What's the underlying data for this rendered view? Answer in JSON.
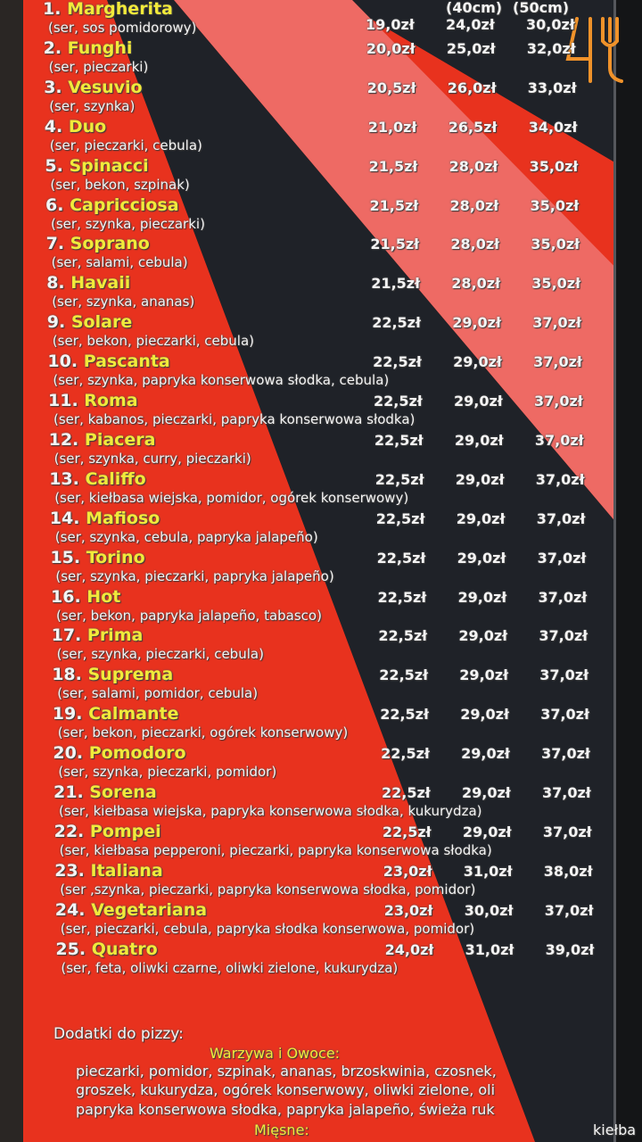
{
  "header": {
    "sizes": [
      "(40cm)",
      "(50cm)"
    ]
  },
  "logo": {
    "text": "45",
    "icon": "fork-icon",
    "color": "#f0922a"
  },
  "colors": {
    "red": "#e8321e",
    "pink": "#ee6a64",
    "dark": "#1f2228",
    "name": "#f2ea3a"
  },
  "pizzas": [
    {
      "num": "1.",
      "name": "Margherita",
      "desc": "(ser, sos pomidorowy)",
      "prices": [
        "19,0zł",
        "24,0zł",
        "30,0zł"
      ]
    },
    {
      "num": "2.",
      "name": "Funghi",
      "desc": "(ser, pieczarki)",
      "prices": [
        "20,0zł",
        "25,0zł",
        "32,0zł"
      ]
    },
    {
      "num": "3.",
      "name": "Vesuvio",
      "desc": "(ser, szynka)",
      "prices": [
        "20,5zł",
        "26,0zł",
        "33,0zł"
      ]
    },
    {
      "num": "4.",
      "name": "Duo",
      "desc": "(ser, pieczarki, cebula)",
      "prices": [
        "21,0zł",
        "26,5zł",
        "34,0zł"
      ]
    },
    {
      "num": "5.",
      "name": "Spinacci",
      "desc": "(ser, bekon, szpinak)",
      "prices": [
        "21,5zł",
        "28,0zł",
        "35,0zł"
      ]
    },
    {
      "num": "6.",
      "name": "Capricciosa",
      "desc": "(ser, szynka, pieczarki)",
      "prices": [
        "21,5zł",
        "28,0zł",
        "35,0zł"
      ]
    },
    {
      "num": "7.",
      "name": "Soprano",
      "desc": "(ser, salami, cebula)",
      "prices": [
        "21,5zł",
        "28,0zł",
        "35,0zł"
      ]
    },
    {
      "num": "8.",
      "name": "Havaii",
      "desc": "(ser, szynka, ananas)",
      "prices": [
        "21,5zł",
        "28,0zł",
        "35,0zł"
      ]
    },
    {
      "num": "9.",
      "name": "Solare",
      "desc": "(ser, bekon, pieczarki, cebula)",
      "prices": [
        "22,5zł",
        "29,0zł",
        "37,0zł"
      ]
    },
    {
      "num": "10.",
      "name": "Pascanta",
      "desc": "(ser, szynka, papryka konserwowa słodka, cebula)",
      "prices": [
        "22,5zł",
        "29,0zł",
        "37,0zł"
      ]
    },
    {
      "num": "11.",
      "name": "Roma",
      "desc": "(ser, kabanos, pieczarki, papryka konserwowa słodka)",
      "prices": [
        "22,5zł",
        "29,0zł",
        "37,0zł"
      ]
    },
    {
      "num": "12.",
      "name": "Piacera",
      "desc": "(ser, szynka, curry, pieczarki)",
      "prices": [
        "22,5zł",
        "29,0zł",
        "37,0zł"
      ]
    },
    {
      "num": "13.",
      "name": "Califfo",
      "desc": "(ser, kiełbasa wiejska, pomidor, ogórek konserwowy)",
      "prices": [
        "22,5zł",
        "29,0zł",
        "37,0zł"
      ]
    },
    {
      "num": "14.",
      "name": "Mafioso",
      "desc": "(ser, szynka, cebula, papryka jalapeño)",
      "prices": [
        "22,5zł",
        "29,0zł",
        "37,0zł"
      ]
    },
    {
      "num": "15.",
      "name": "Torino",
      "desc": "(ser, szynka, pieczarki, papryka jalapeño)",
      "prices": [
        "22,5zł",
        "29,0zł",
        "37,0zł"
      ]
    },
    {
      "num": "16.",
      "name": "Hot",
      "desc": "(ser, bekon, papryka jalapeño, tabasco)",
      "prices": [
        "22,5zł",
        "29,0zł",
        "37,0zł"
      ]
    },
    {
      "num": "17.",
      "name": "Prima",
      "desc": "(ser, szynka, pieczarki, cebula)",
      "prices": [
        "22,5zł",
        "29,0zł",
        "37,0zł"
      ]
    },
    {
      "num": "18.",
      "name": "Suprema",
      "desc": "(ser, salami, pomidor, cebula)",
      "prices": [
        "22,5zł",
        "29,0zł",
        "37,0zł"
      ]
    },
    {
      "num": "19.",
      "name": "Calmante",
      "desc": "(ser, bekon, pieczarki, ogórek konserwowy)",
      "prices": [
        "22,5zł",
        "29,0zł",
        "37,0zł"
      ]
    },
    {
      "num": "20.",
      "name": "Pomodoro",
      "desc": "(ser, szynka, pieczarki, pomidor)",
      "prices": [
        "22,5zł",
        "29,0zł",
        "37,0zł"
      ]
    },
    {
      "num": "21.",
      "name": "Sorena",
      "desc": "(ser, kiełbasa wiejska, papryka konserwowa słodka, kukurydza)",
      "prices": [
        "22,5zł",
        "29,0zł",
        "37,0zł"
      ]
    },
    {
      "num": "22.",
      "name": "Pompei",
      "desc": "(ser, kiełbasa pepperoni, pieczarki, papryka konserwowa słodka)",
      "prices": [
        "22,5zł",
        "29,0zł",
        "37,0zł"
      ]
    },
    {
      "num": "23.",
      "name": "Italiana",
      "desc": "(ser ,szynka, pieczarki, papryka konserwowa słodka, pomidor)",
      "prices": [
        "23,0zł",
        "31,0zł",
        "38,0zł"
      ]
    },
    {
      "num": "24.",
      "name": "Vegetariana",
      "desc": "(ser, pieczarki, cebula, papryka słodka konserwowa, pomidor)",
      "prices": [
        "23,0zł",
        "30,0zł",
        "37,0zł"
      ]
    },
    {
      "num": "25.",
      "name": "Quatro",
      "desc": "(ser, feta, oliwki czarne, oliwki zielone, kukurydza)",
      "prices": [
        "24,0zł",
        "31,0zł",
        "39,0zł"
      ]
    }
  ],
  "addons": {
    "title": "Dodatki do pizzy:",
    "veg_title": "Warzywa i Owoce:",
    "veg_lines": [
      "pieczarki, pomidor, szpinak, ananas, brzoskwinia, czosnek,",
      "groszek, kukurydza, ogórek konserwowy, oliwki zielone, oli",
      "papryka konserwowa słodka, papryka jalapeño, świeża ruk"
    ],
    "meat_title": "Mięsne:",
    "meat_partial": "kiełba"
  }
}
